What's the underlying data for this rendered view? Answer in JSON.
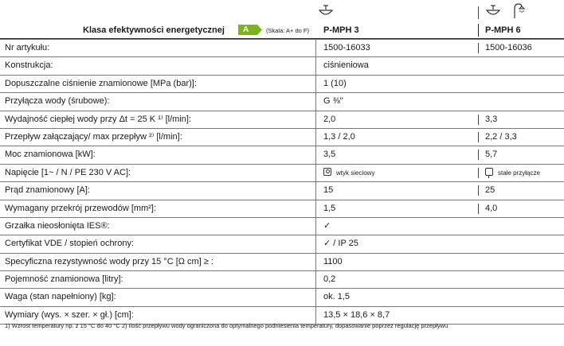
{
  "header": {
    "title": "Klasa efektywności energetycznej",
    "energy_class": "A",
    "scale_note": "(Skala: A+ do F)",
    "models": [
      "P-MPH 3",
      "P-MPH 6"
    ]
  },
  "icons": {
    "model1": "sink-icon",
    "model2": [
      "sink-icon",
      "shower-icon"
    ],
    "power_plug": "plug-icon",
    "fixed_connection": "fixed-connection-icon"
  },
  "colors": {
    "energy_badge": "#7ab51d"
  },
  "rows": [
    {
      "label": "Nr artykułu:",
      "v1": "1500-16033",
      "v2": "1500-16036"
    },
    {
      "label": "Konstrukcja:",
      "v1": "ciśnieniowa",
      "v2": ""
    },
    {
      "label": "Dopuszczalne ciśnienie znamionowe [MPa (bar)]:",
      "v1": "1 (10)",
      "v2": ""
    },
    {
      "label": "Przyłącza wody (śrubowe):",
      "v1": "G ⅜\"",
      "v2": ""
    },
    {
      "label": "Wydajność ciepłej wody przy Δt = 25 K ¹⁾ [l/min]:",
      "v1": "2,0",
      "v2": "3,3"
    },
    {
      "label": "Przepływ załączający/ max przepływ ²⁾ [l/min]:",
      "v1": "1,3 / 2,0",
      "v2": "2,2 / 3,3"
    },
    {
      "label": "Moc znamionowa [kW]:",
      "v1": "3,5",
      "v2": "5,7"
    },
    {
      "label": "Napięcie [1~ / N / PE 230 V AC]:",
      "v1": "wtyk sieciowy",
      "v2": "stałe przyłącze"
    },
    {
      "label": "Prąd znamionowy [A]:",
      "v1": "15",
      "v2": "25"
    },
    {
      "label": "Wymagany przekrój przewodów [mm²]:",
      "v1": "1,5",
      "v2": "4,0"
    },
    {
      "label": "Grzałka nieosłonięta IES®:",
      "v1": "✓",
      "v2": ""
    },
    {
      "label": "Certyfikat VDE / stopień ochrony:",
      "v1": "✓ / IP 25",
      "v2": ""
    },
    {
      "label": "Specyficzna rezystywność wody przy 15 °C [Ω cm] ≥ :",
      "v1": "1100",
      "v2": ""
    },
    {
      "label": "Pojemność znamionowa [litry]:",
      "v1": "0,2",
      "v2": ""
    },
    {
      "label": "Waga (stan napełniony) [kg]:",
      "v1": "ok. 1,5",
      "v2": ""
    },
    {
      "label": "Wymiary (wys. × szer. × gł.) [cm]:",
      "v1": "13,5 × 18,6 × 8,7",
      "v2": ""
    }
  ],
  "footnote": "1) Wzrost temperatury np. z 15 °C do 40 °C      2) Ilość przepływu wody ograniczona do optymalnego podniesienia temperatury, dopasowanie poprzez regulację przepływu"
}
